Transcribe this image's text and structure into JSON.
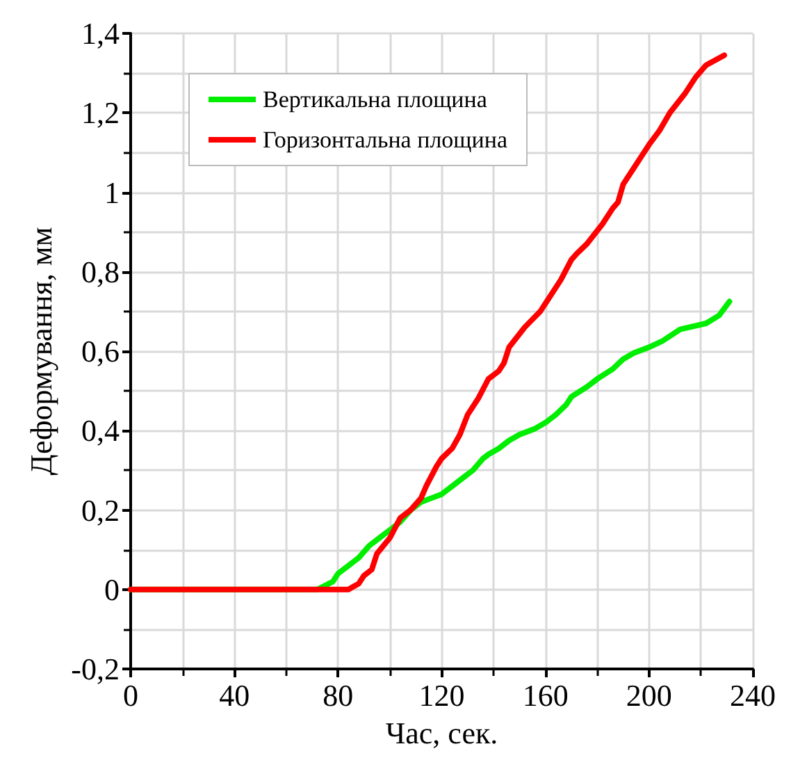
{
  "chart_data": {
    "type": "line",
    "xlabel": "Час, сек.",
    "ylabel": "Деформування, мм",
    "xlim": [
      0,
      240
    ],
    "xticks": [
      0,
      40,
      80,
      120,
      160,
      200,
      240
    ],
    "ylim": [
      -0.2,
      1.4
    ],
    "yticks": [
      {
        "value": -0.2,
        "label": "-0,2"
      },
      0,
      {
        "value": 0.2,
        "label": "0,2"
      },
      {
        "value": 0.4,
        "label": "0,4"
      },
      {
        "value": 0.6,
        "label": "0,6"
      },
      {
        "value": 0.8,
        "label": "0,8"
      },
      1,
      {
        "value": 1.2,
        "label": "1,2"
      },
      {
        "value": 1.4,
        "label": "1,4"
      }
    ],
    "grid": true,
    "legend": "top left",
    "marker": "none",
    "line_style": "solid",
    "series": [
      {
        "name": "Вертикальна площина",
        "color": "#00ee00",
        "x": [
          0,
          72,
          78,
          80,
          84,
          88,
          92,
          96,
          100,
          104,
          108,
          112,
          116,
          120,
          124,
          128,
          132,
          136,
          138,
          142,
          146,
          150,
          156,
          160,
          164,
          168,
          170,
          176,
          180,
          186,
          190,
          194,
          200,
          205,
          212,
          222,
          227,
          231
        ],
        "values": [
          0,
          0,
          0.02,
          0.04,
          0.06,
          0.08,
          0.11,
          0.13,
          0.15,
          0.17,
          0.2,
          0.22,
          0.23,
          0.24,
          0.26,
          0.28,
          0.3,
          0.33,
          0.34,
          0.355,
          0.375,
          0.39,
          0.405,
          0.42,
          0.44,
          0.465,
          0.485,
          0.51,
          0.53,
          0.555,
          0.58,
          0.595,
          0.61,
          0.625,
          0.655,
          0.67,
          0.69,
          0.725
        ]
      },
      {
        "name": "Горизонтальна площина",
        "color": "#ff0000",
        "x": [
          0,
          84,
          88,
          90,
          93,
          95,
          100,
          104,
          108,
          112,
          114,
          118,
          120,
          124,
          127,
          130,
          134,
          138,
          142,
          144,
          146,
          152,
          158,
          160,
          166,
          170,
          172,
          176,
          182,
          186,
          188,
          190,
          194,
          198,
          200,
          204,
          208,
          214,
          218,
          222,
          229
        ],
        "values": [
          0,
          0,
          0.015,
          0.035,
          0.05,
          0.09,
          0.13,
          0.18,
          0.2,
          0.23,
          0.26,
          0.31,
          0.33,
          0.355,
          0.39,
          0.44,
          0.48,
          0.53,
          0.55,
          0.57,
          0.61,
          0.66,
          0.7,
          0.72,
          0.78,
          0.83,
          0.845,
          0.87,
          0.92,
          0.96,
          0.975,
          1.02,
          1.06,
          1.1,
          1.12,
          1.155,
          1.2,
          1.25,
          1.29,
          1.32,
          1.345
        ]
      }
    ]
  }
}
